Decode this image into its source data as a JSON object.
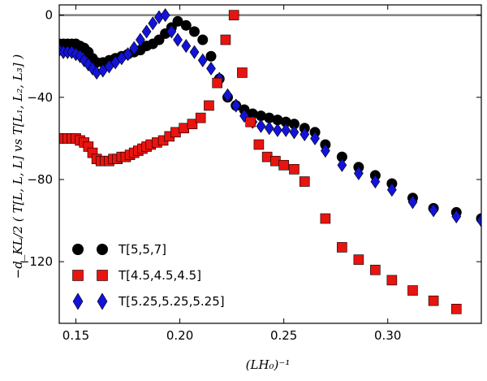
{
  "chart_data": {
    "type": "scatter",
    "title": "",
    "xlabel": "(LH₀)⁻¹",
    "ylabel": "−d_KL/2 ( T[L, L, L] vs T[L₁, L₂, L₃] )",
    "xlim": [
      0.142,
      0.345
    ],
    "ylim": [
      -150,
      5
    ],
    "xticks": [
      0.15,
      0.2,
      0.25,
      0.3
    ],
    "xtick_labels": [
      "0.15",
      "0.20",
      "0.25",
      "0.30"
    ],
    "yticks": [
      0,
      -40,
      -80,
      -120
    ],
    "ytick_labels": [
      "0",
      "−40",
      "−80",
      "−120"
    ],
    "reference_line": 0,
    "legend_position": "lower-left",
    "series": [
      {
        "name": "T[5,5,7]",
        "marker": "circle",
        "color": "#000000",
        "x": [
          0.142,
          0.144,
          0.146,
          0.148,
          0.15,
          0.152,
          0.154,
          0.156,
          0.158,
          0.16,
          0.163,
          0.166,
          0.169,
          0.172,
          0.175,
          0.178,
          0.181,
          0.184,
          0.187,
          0.19,
          0.193,
          0.196,
          0.199,
          0.203,
          0.207,
          0.211,
          0.215,
          0.219,
          0.223,
          0.227,
          0.231,
          0.235,
          0.239,
          0.243,
          0.247,
          0.251,
          0.255,
          0.26,
          0.265,
          0.27,
          0.278,
          0.286,
          0.294,
          0.302,
          0.312,
          0.322,
          0.333,
          0.345
        ],
        "y": [
          -14,
          -14,
          -14,
          -14,
          -14,
          -15,
          -16,
          -18,
          -21,
          -23,
          -23,
          -22,
          -21,
          -20,
          -19,
          -18,
          -17,
          -15,
          -14,
          -12,
          -9,
          -6,
          -3,
          -5,
          -8,
          -12,
          -20,
          -31,
          -40,
          -44,
          -46,
          -48,
          -49,
          -50,
          -51,
          -52,
          -53,
          -55,
          -57,
          -63,
          -69,
          -74,
          -78,
          -82,
          -89,
          -94,
          -96,
          -99
        ]
      },
      {
        "name": "T[4.5,4.5,4.5]",
        "marker": "square",
        "color": "#e8140f",
        "x": [
          0.142,
          0.144,
          0.146,
          0.148,
          0.15,
          0.152,
          0.154,
          0.156,
          0.158,
          0.16,
          0.162,
          0.164,
          0.166,
          0.168,
          0.17,
          0.172,
          0.174,
          0.176,
          0.178,
          0.18,
          0.182,
          0.184,
          0.186,
          0.189,
          0.192,
          0.195,
          0.198,
          0.202,
          0.206,
          0.21,
          0.214,
          0.218,
          0.222,
          0.226,
          0.23,
          0.234,
          0.238,
          0.242,
          0.246,
          0.25,
          0.255,
          0.26,
          0.27,
          0.278,
          0.286,
          0.294,
          0.302,
          0.312,
          0.322,
          0.333
        ],
        "y": [
          -60,
          -60,
          -60,
          -60,
          -60,
          -61,
          -62,
          -64,
          -67,
          -70,
          -71,
          -71,
          -71,
          -70,
          -70,
          -69,
          -69,
          -68,
          -67,
          -66,
          -65,
          -64,
          -63,
          -62,
          -61,
          -59,
          -57,
          -55,
          -53,
          -50,
          -44,
          -33,
          -12,
          0,
          -28,
          -52,
          -63,
          -69,
          -71,
          -73,
          -75,
          -81,
          -99,
          -113,
          -119,
          -124,
          -129,
          -134,
          -139,
          -143
        ]
      },
      {
        "name": "T[5.25,5.25,5.25]",
        "marker": "diamond",
        "color": "#1313d8",
        "x": [
          0.142,
          0.144,
          0.146,
          0.148,
          0.15,
          0.152,
          0.154,
          0.156,
          0.158,
          0.16,
          0.163,
          0.166,
          0.169,
          0.172,
          0.175,
          0.178,
          0.181,
          0.184,
          0.187,
          0.19,
          0.193,
          0.196,
          0.199,
          0.203,
          0.207,
          0.211,
          0.215,
          0.219,
          0.223,
          0.227,
          0.231,
          0.235,
          0.239,
          0.243,
          0.247,
          0.251,
          0.255,
          0.26,
          0.265,
          0.27,
          0.278,
          0.286,
          0.294,
          0.302,
          0.312,
          0.322,
          0.333,
          0.345
        ],
        "y": [
          -17,
          -18,
          -18,
          -18,
          -19,
          -20,
          -22,
          -24,
          -26,
          -28,
          -27,
          -25,
          -23,
          -21,
          -19,
          -16,
          -12,
          -8,
          -4,
          -1,
          0,
          -8,
          -12,
          -15,
          -18,
          -22,
          -26,
          -31,
          -39,
          -44,
          -49,
          -52,
          -54,
          -55,
          -56,
          -56,
          -57,
          -58,
          -60,
          -66,
          -73,
          -77,
          -81,
          -85,
          -91,
          -95,
          -98,
          -100
        ]
      }
    ]
  }
}
